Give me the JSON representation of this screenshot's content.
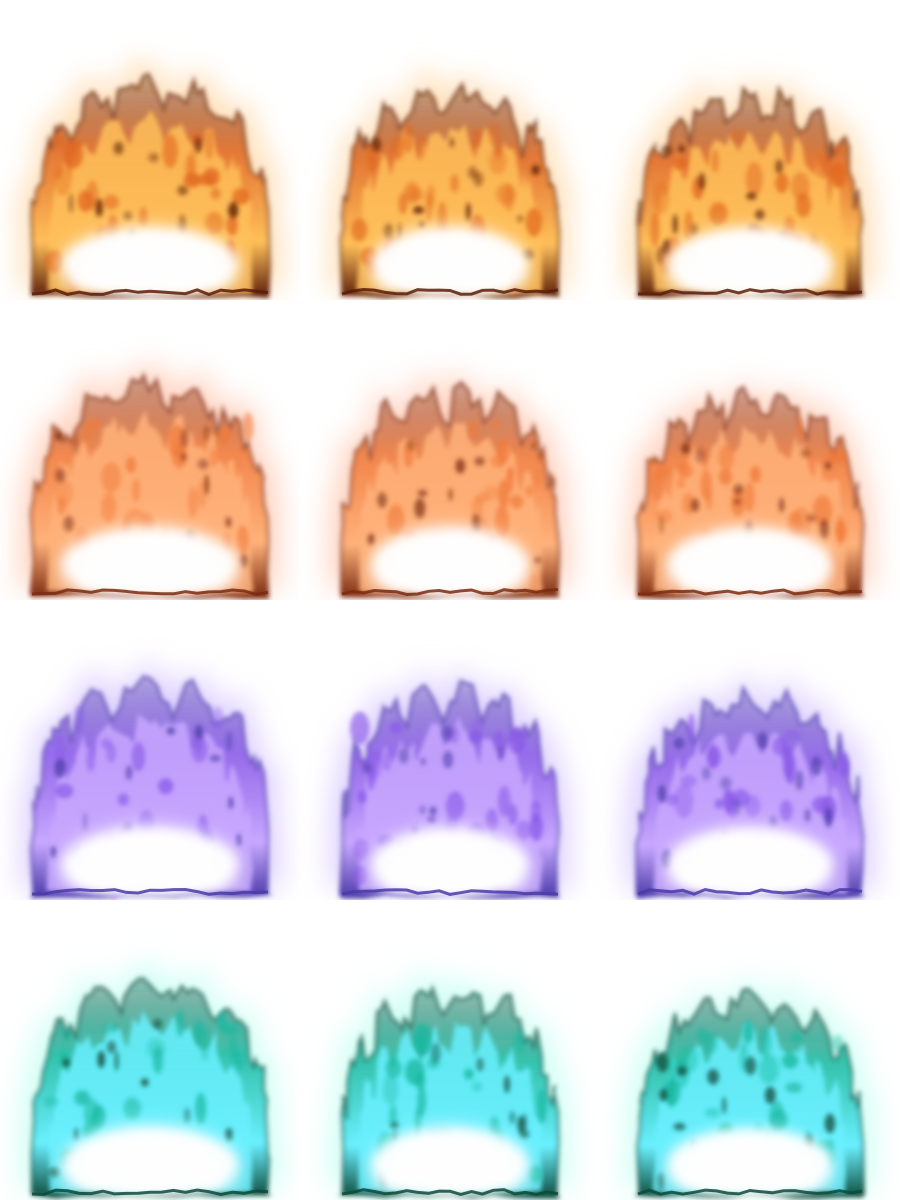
{
  "sheet": {
    "rows": [
      {
        "palette": {
          "outer": "#5a1c08",
          "mid": "#e0661e",
          "inner": "#ffc05a",
          "core": "#ffffff",
          "glow": "#ffd8a8"
        },
        "frames": [
          "flame-a",
          "flame-b",
          "flame-c"
        ]
      },
      {
        "palette": {
          "outer": "#7a2a10",
          "mid": "#f07a3a",
          "inner": "#ffb27a",
          "core": "#ffffff",
          "glow": "#ffc8b0"
        },
        "frames": [
          "flame-a",
          "flame-b",
          "flame-c"
        ]
      },
      {
        "palette": {
          "outer": "#4a3aa8",
          "mid": "#8a5ae8",
          "inner": "#c8a8ff",
          "core": "#ffffff",
          "glow": "#d6c6ff"
        },
        "frames": [
          "flame-a",
          "flame-b",
          "flame-c"
        ]
      },
      {
        "palette": {
          "outer": "#0c4a3a",
          "mid": "#1ab8a0",
          "inner": "#6af0ff",
          "core": "#ffffff",
          "glow": "#c4fff2"
        },
        "frames": [
          "flame-a",
          "flame-b",
          "flame-c"
        ]
      }
    ]
  }
}
